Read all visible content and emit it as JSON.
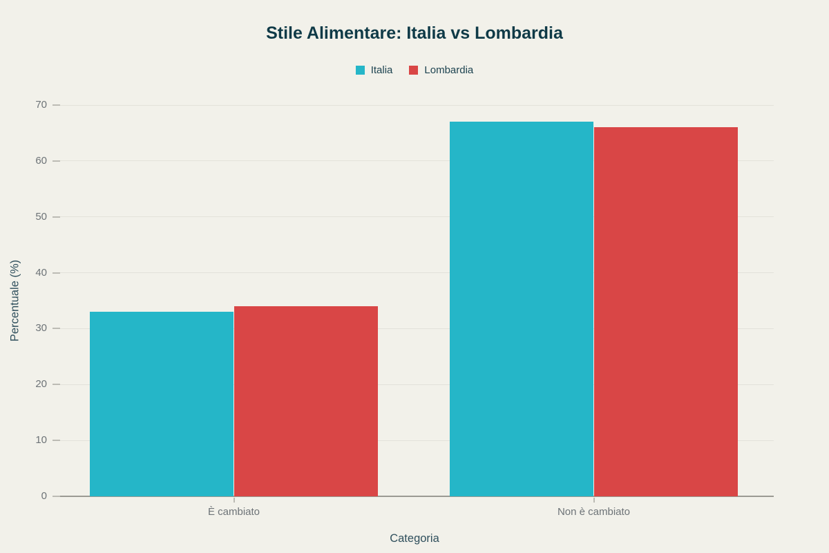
{
  "chart_data": {
    "type": "bar",
    "title": "Stile Alimentare: Italia vs Lombardia",
    "categories": [
      "È cambiato",
      "Non è cambiato"
    ],
    "series": [
      {
        "name": "Italia",
        "color": "#25b6c8",
        "values": [
          33,
          67
        ]
      },
      {
        "name": "Lombardia",
        "color": "#d94646",
        "values": [
          34,
          66
        ]
      }
    ],
    "xlabel": "Categoria",
    "ylabel": "Percentuale (%)",
    "ylim": [
      0,
      70
    ],
    "yticks": [
      0,
      10,
      20,
      30,
      40,
      50,
      60,
      70
    ],
    "grid": true,
    "legend_position": "top-center",
    "bar_group_gap_fraction": 0.2
  },
  "style": {
    "background": "#f2f1ea",
    "gridline_color": "#e3e2da",
    "axis_line_color": "#9b9a93",
    "tick_label_color": "#6d7377",
    "title_color": "#0f3a47",
    "axis_title_color": "#2f4f5c",
    "legend_text_color": "#1d4350"
  }
}
